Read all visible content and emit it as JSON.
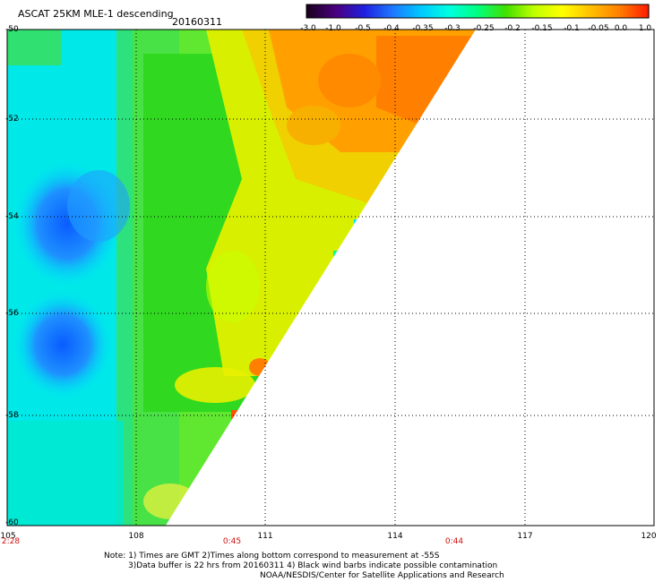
{
  "title": "ASCAT 25KM MLE-1 descending",
  "date": "20160311",
  "colorbar": {
    "labels": [
      "-3.0",
      "-1.0",
      "-0.5",
      "-0.4",
      "-0.35",
      "-0.3",
      "-0.25",
      "-0.2",
      "-0.15",
      "-0.1",
      "-0.05",
      "0.0",
      "1.0"
    ],
    "colors": [
      "#1a0020",
      "#4a0080",
      "#2020e0",
      "#1e78ff",
      "#00c8ff",
      "#00ffe0",
      "#00ff80",
      "#40e000",
      "#c0ff00",
      "#ffff00",
      "#ffc000",
      "#ff8000",
      "#ff2000"
    ]
  },
  "axes": {
    "lat_labels": [
      "-50",
      "-52",
      "-54",
      "-56",
      "-58",
      "-60"
    ],
    "lon_labels": [
      "105",
      "108",
      "111",
      "114",
      "117",
      "120"
    ]
  },
  "times": [
    "2:28",
    "0:45",
    "0:44"
  ],
  "notes": {
    "line1": "Note: 1) Times are GMT 2)Times along bottom correspond to measurement at -55S",
    "line2": "3)Data buffer is 22 hrs from 20160311 4) Black wind barbs indicate possible contamination",
    "line3": "NOAA/NESDIS/Center for Satellite Applications and Research"
  }
}
